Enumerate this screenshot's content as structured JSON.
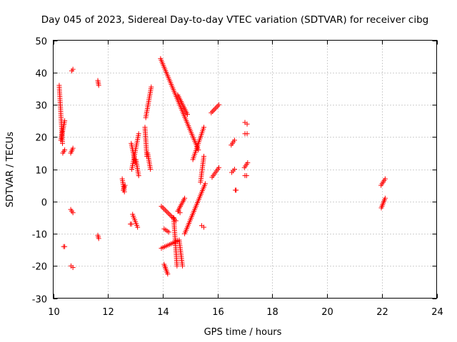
{
  "chart_data": {
    "type": "scatter",
    "title": "Day 045 of 2023, Sidereal Day-to-day VTEC variation (SDTVAR) for receiver cibg",
    "xlabel": "GPS time / hours",
    "ylabel": "SDTVAR / TECUs",
    "xlim": [
      10,
      24
    ],
    "ylim": [
      -30,
      50
    ],
    "xticks": [
      10,
      12,
      14,
      16,
      18,
      20,
      22,
      24
    ],
    "xtick_labels": [
      "10",
      "12",
      "14",
      "16",
      "18",
      "20",
      "22",
      "24"
    ],
    "yticks": [
      -30,
      -20,
      -10,
      0,
      10,
      20,
      30,
      40,
      50
    ],
    "ytick_labels": [
      "-30",
      "-20",
      "-10",
      "0",
      "10",
      "20",
      "30",
      "40",
      "50"
    ],
    "grid": true,
    "marker": "+",
    "color": "#ff0000",
    "segments": [
      {
        "x": [
          10.22,
          10.34
        ],
        "y": [
          36,
          18
        ]
      },
      {
        "x": [
          10.28,
          10.42
        ],
        "y": [
          19,
          25
        ]
      },
      {
        "x": [
          10.35,
          10.42
        ],
        "y": [
          15,
          16
        ]
      },
      {
        "x": [
          10.38,
          10.42
        ],
        "y": [
          -14,
          -14
        ]
      },
      {
        "x": [
          10.68,
          10.72
        ],
        "y": [
          40.5,
          41
        ]
      },
      {
        "x": [
          10.64,
          10.72
        ],
        "y": [
          15,
          16.5
        ]
      },
      {
        "x": [
          10.64,
          10.72
        ],
        "y": [
          -2.5,
          -3.5
        ]
      },
      {
        "x": [
          10.65,
          10.72
        ],
        "y": [
          -20,
          -20.5
        ]
      },
      {
        "x": [
          11.63,
          11.66
        ],
        "y": [
          37.5,
          36
        ]
      },
      {
        "x": [
          11.63,
          11.66
        ],
        "y": [
          -10.5,
          -11.5
        ]
      },
      {
        "x": [
          12.52,
          12.6
        ],
        "y": [
          7,
          3
        ]
      },
      {
        "x": [
          12.56,
          12.62
        ],
        "y": [
          3.5,
          5
        ]
      },
      {
        "x": [
          12.85,
          13.0
        ],
        "y": [
          18,
          12
        ]
      },
      {
        "x": [
          12.87,
          13.12
        ],
        "y": [
          10,
          21
        ]
      },
      {
        "x": [
          12.9,
          13.08
        ],
        "y": [
          -4,
          -8
        ]
      },
      {
        "x": [
          12.82,
          12.86
        ],
        "y": [
          -7,
          -7
        ]
      },
      {
        "x": [
          13.02,
          13.12
        ],
        "y": [
          13,
          8
        ]
      },
      {
        "x": [
          13.35,
          13.42
        ],
        "y": [
          23,
          14
        ]
      },
      {
        "x": [
          13.45,
          13.55
        ],
        "y": [
          15,
          10
        ]
      },
      {
        "x": [
          13.38,
          13.58
        ],
        "y": [
          26,
          35.5
        ]
      },
      {
        "x": [
          13.92,
          15.3
        ],
        "y": [
          44.3,
          16
        ]
      },
      {
        "x": [
          14.55,
          14.9
        ],
        "y": [
          33,
          27
        ]
      },
      {
        "x": [
          15.1,
          15.5
        ],
        "y": [
          13,
          23
        ]
      },
      {
        "x": [
          15.38,
          15.5
        ],
        "y": [
          6,
          14
        ]
      },
      {
        "x": [
          15.77,
          16.05
        ],
        "y": [
          27.5,
          30
        ]
      },
      {
        "x": [
          15.8,
          16.05
        ],
        "y": [
          7.5,
          10.5
        ]
      },
      {
        "x": [
          14.8,
          15.55
        ],
        "y": [
          -10,
          5.5
        ]
      },
      {
        "x": [
          14.55,
          14.8
        ],
        "y": [
          -3,
          1
        ]
      },
      {
        "x": [
          14.58,
          14.63
        ],
        "y": [
          -3,
          -3.5
        ]
      },
      {
        "x": [
          13.95,
          14.48
        ],
        "y": [
          -1.5,
          -6
        ]
      },
      {
        "x": [
          14.05,
          14.22
        ],
        "y": [
          -8.5,
          -9.5
        ]
      },
      {
        "x": [
          14.4,
          14.52
        ],
        "y": [
          -5,
          -20
        ]
      },
      {
        "x": [
          13.95,
          14.6
        ],
        "y": [
          -14.5,
          -12
        ]
      },
      {
        "x": [
          14.6,
          14.72
        ],
        "y": [
          -12,
          -20
        ]
      },
      {
        "x": [
          14.05,
          14.18
        ],
        "y": [
          -19.5,
          -22.5
        ]
      },
      {
        "x": [
          15.42,
          15.5
        ],
        "y": [
          -7.5,
          -8
        ]
      },
      {
        "x": [
          16.5,
          16.62
        ],
        "y": [
          17.5,
          19
        ]
      },
      {
        "x": [
          16.52,
          16.62
        ],
        "y": [
          9,
          10
        ]
      },
      {
        "x": [
          16.65,
          16.68
        ],
        "y": [
          3.5,
          3.5
        ]
      },
      {
        "x": [
          17.0,
          17.08
        ],
        "y": [
          24.5,
          24
        ]
      },
      {
        "x": [
          17.0,
          17.08
        ],
        "y": [
          21,
          21
        ]
      },
      {
        "x": [
          16.98,
          17.1
        ],
        "y": [
          10.5,
          12
        ]
      },
      {
        "x": [
          17.0,
          17.06
        ],
        "y": [
          8,
          8
        ]
      },
      {
        "x": [
          21.97,
          22.12
        ],
        "y": [
          5,
          7
        ]
      },
      {
        "x": [
          21.98,
          22.12
        ],
        "y": [
          -2,
          1
        ]
      }
    ]
  }
}
